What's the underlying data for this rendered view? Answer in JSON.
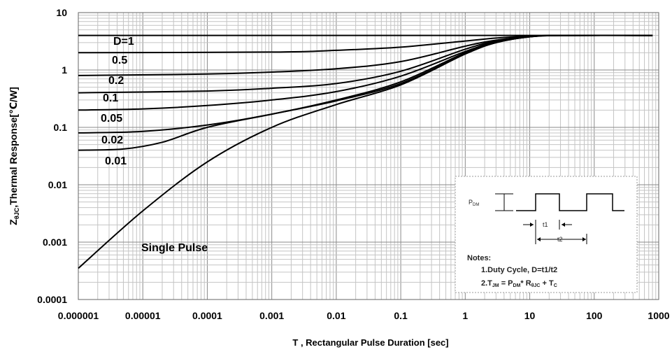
{
  "chart_data": {
    "type": "line",
    "title": "",
    "xlabel": "T , Rectangular Pulse Duration [sec]",
    "ylabel_parts": {
      "z": "Z",
      "sub": "θJC",
      "rest": ",Thermal Response[℃/W]"
    },
    "xscale": "log",
    "yscale": "log",
    "xlim": [
      1e-06,
      1000
    ],
    "ylim": [
      0.0001,
      10
    ],
    "grid": true,
    "x_tick_labels": [
      "0.000001",
      "0.00001",
      "0.0001",
      "0.001",
      "0.01",
      "0.1",
      "1",
      "10",
      "100",
      "1000"
    ],
    "y_tick_labels": [
      "0.0001",
      "0.001",
      "0.01",
      "0.1",
      "1",
      "10"
    ],
    "series": [
      {
        "name": "D=1",
        "x": [
          1e-06,
          0.01,
          1,
          10,
          800
        ],
        "y": [
          4,
          4,
          4,
          4,
          4
        ]
      },
      {
        "name": "0.5",
        "x": [
          1e-06,
          0.001,
          0.01,
          0.1,
          1,
          3,
          10,
          30,
          800
        ],
        "y": [
          2,
          2.05,
          2.2,
          2.5,
          3.2,
          3.6,
          3.9,
          4,
          4
        ]
      },
      {
        "name": "0.2",
        "x": [
          1e-06,
          0.0001,
          0.001,
          0.01,
          0.1,
          1,
          3,
          10,
          30,
          800
        ],
        "y": [
          0.8,
          0.85,
          0.92,
          1.05,
          1.4,
          2.6,
          3.3,
          3.8,
          4,
          4
        ]
      },
      {
        "name": "0.1",
        "x": [
          1e-06,
          0.0001,
          0.001,
          0.01,
          0.1,
          1,
          3,
          10,
          30,
          800
        ],
        "y": [
          0.4,
          0.43,
          0.48,
          0.58,
          0.95,
          2.3,
          3.2,
          3.8,
          4,
          4
        ]
      },
      {
        "name": "0.05",
        "x": [
          1e-06,
          1e-05,
          0.0001,
          0.001,
          0.01,
          0.1,
          1,
          3,
          10,
          30,
          800
        ],
        "y": [
          0.2,
          0.21,
          0.24,
          0.3,
          0.42,
          0.78,
          2.1,
          3.1,
          3.8,
          4,
          4
        ]
      },
      {
        "name": "0.02",
        "x": [
          1e-06,
          1e-05,
          0.0001,
          0.001,
          0.01,
          0.1,
          1,
          3,
          10,
          30,
          800
        ],
        "y": [
          0.08,
          0.085,
          0.11,
          0.17,
          0.3,
          0.62,
          2.0,
          3.0,
          3.8,
          4,
          4
        ]
      },
      {
        "name": "0.01",
        "x": [
          1e-06,
          5e-06,
          2e-05,
          0.0001,
          0.001,
          0.01,
          0.1,
          1,
          3,
          10,
          30,
          800
        ],
        "y": [
          0.04,
          0.042,
          0.055,
          0.1,
          0.17,
          0.29,
          0.58,
          1.9,
          3.0,
          3.8,
          4,
          4
        ]
      },
      {
        "name": "Single Pulse",
        "x": [
          1e-06,
          1e-05,
          0.0001,
          0.001,
          0.01,
          0.1,
          1,
          3,
          10,
          30,
          800
        ],
        "y": [
          0.00035,
          0.0035,
          0.025,
          0.1,
          0.25,
          0.55,
          1.9,
          3.0,
          3.8,
          4,
          4
        ]
      }
    ],
    "curve_labels": [
      "D=1",
      "0.5",
      "0.2",
      "0.1",
      "0.05",
      "0.02",
      "0.01",
      "Single Pulse"
    ]
  },
  "inset": {
    "pdm_label": "P",
    "pdm_sub": "DM",
    "t1": "t1",
    "t2": "t2",
    "notes_title": "Notes:",
    "note1": "1.Duty  Cycle, D=t1/t2",
    "note2_parts": [
      "2.T",
      "JM",
      " = P",
      "DM",
      "* R",
      "θJC",
      " + T",
      "C"
    ]
  }
}
